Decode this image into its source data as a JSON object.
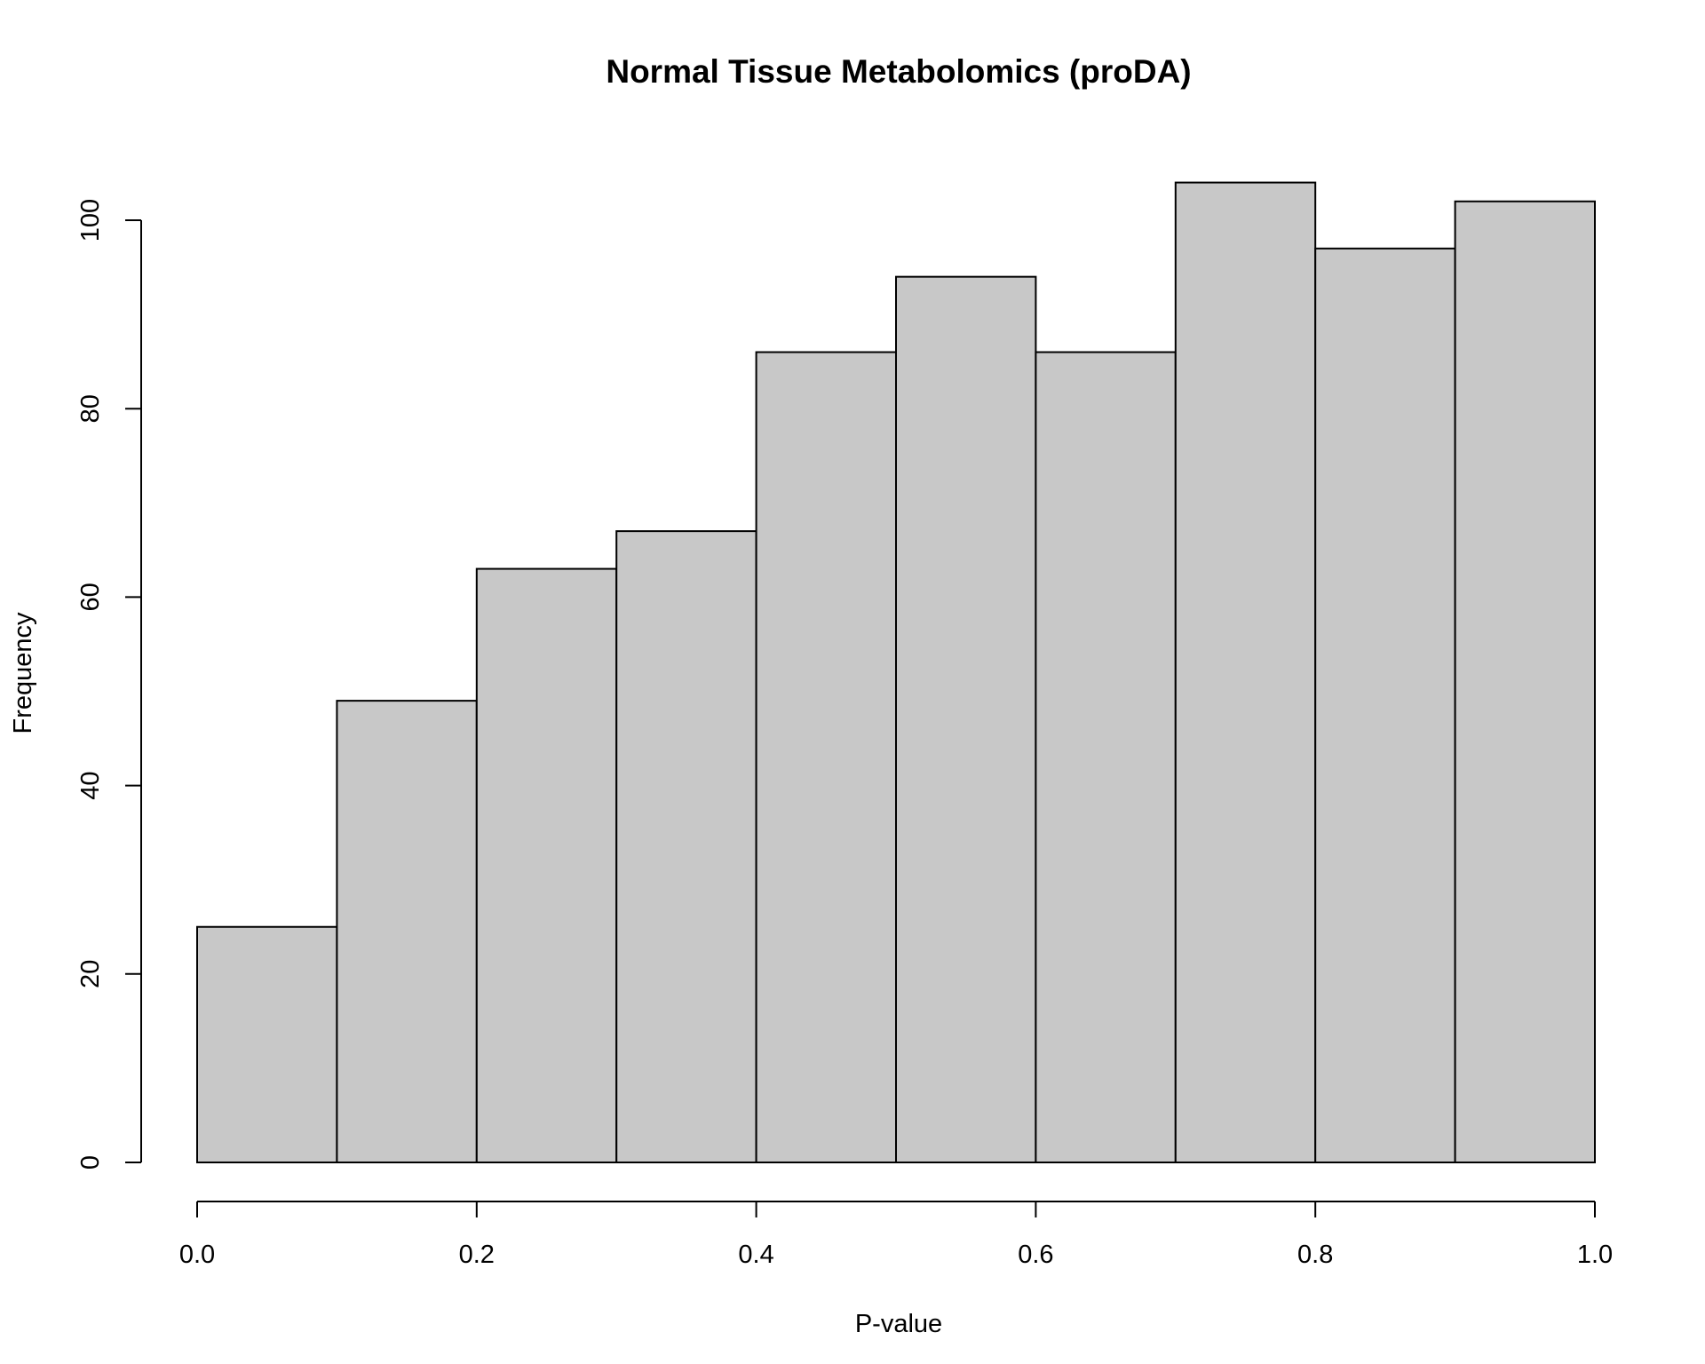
{
  "chart_data": {
    "type": "bar",
    "histogram": true,
    "title": "Normal Tissue Metabolomics (proDA)",
    "xlabel": "P-value",
    "ylabel": "Frequency",
    "bins": [
      {
        "from": 0.0,
        "to": 0.1,
        "count": 25
      },
      {
        "from": 0.1,
        "to": 0.2,
        "count": 49
      },
      {
        "from": 0.2,
        "to": 0.3,
        "count": 63
      },
      {
        "from": 0.3,
        "to": 0.4,
        "count": 67
      },
      {
        "from": 0.4,
        "to": 0.5,
        "count": 86
      },
      {
        "from": 0.5,
        "to": 0.6,
        "count": 94
      },
      {
        "from": 0.6,
        "to": 0.7,
        "count": 86
      },
      {
        "from": 0.7,
        "to": 0.8,
        "count": 104
      },
      {
        "from": 0.8,
        "to": 0.9,
        "count": 97
      },
      {
        "from": 0.9,
        "to": 1.0,
        "count": 102
      }
    ],
    "xlim": [
      0.0,
      1.0
    ],
    "ylim": [
      0,
      100
    ],
    "xticks": [
      "0.0",
      "0.2",
      "0.4",
      "0.6",
      "0.8",
      "1.0"
    ],
    "xtick_values": [
      0.0,
      0.2,
      0.4,
      0.6,
      0.8,
      1.0
    ],
    "yticks": [
      "0",
      "20",
      "40",
      "60",
      "80",
      "100"
    ],
    "ytick_values": [
      0,
      20,
      40,
      60,
      80,
      100
    ],
    "bar_color": "#c8c8c8",
    "edge_color": "#000000",
    "grid": false
  }
}
